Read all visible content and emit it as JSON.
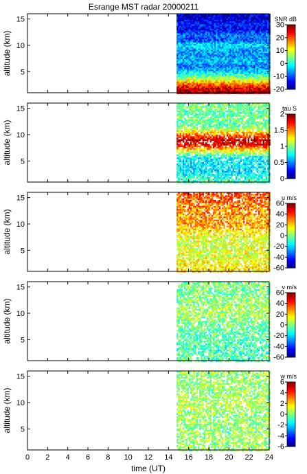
{
  "chart_data": {
    "type": "heatmap",
    "title": "Esrange MST radar 20000211",
    "xlabel": "time (UT)",
    "xlim": [
      0,
      24
    ],
    "x_ticks": [
      0,
      2,
      4,
      6,
      8,
      10,
      12,
      14,
      16,
      18,
      20,
      22,
      24
    ],
    "data_start_hour": 14.8,
    "panels": [
      {
        "name": "SNR",
        "ylabel": "altitude (km)",
        "ylim": [
          1,
          16
        ],
        "y_ticks": [
          5,
          10,
          15
        ],
        "colorbar_label": "SNR dB",
        "clim": [
          -20,
          30
        ],
        "colorbar_ticks": [
          -20,
          -10,
          0,
          10,
          20,
          30
        ],
        "fill": 1.0,
        "profile": [
          [
            1,
            28
          ],
          [
            2,
            24
          ],
          [
            3,
            14
          ],
          [
            4,
            4
          ],
          [
            5,
            -3
          ],
          [
            6,
            -8
          ],
          [
            7,
            -4
          ],
          [
            8,
            -7
          ],
          [
            9,
            -6
          ],
          [
            10,
            -2
          ],
          [
            11,
            -10
          ],
          [
            12,
            -8
          ],
          [
            13,
            -14
          ],
          [
            14,
            -12
          ],
          [
            15,
            -16
          ],
          [
            16,
            -16
          ]
        ]
      },
      {
        "name": "tau",
        "ylabel": "altitude (km)",
        "ylim": [
          1,
          16
        ],
        "y_ticks": [
          5,
          10,
          15
        ],
        "colorbar_label": "tau S",
        "clim": [
          0,
          2
        ],
        "colorbar_ticks": [
          0,
          0.5,
          1,
          1.5,
          2
        ],
        "fill": 0.8,
        "profile": [
          [
            1,
            0.9
          ],
          [
            2,
            0.8
          ],
          [
            3,
            0.7
          ],
          [
            4,
            0.75
          ],
          [
            5,
            0.7
          ],
          [
            6,
            0.85
          ],
          [
            7,
            1.3
          ],
          [
            8,
            1.75
          ],
          [
            9,
            1.85
          ],
          [
            10,
            1.5
          ],
          [
            11,
            1.1
          ],
          [
            12,
            0.9
          ],
          [
            13,
            1.0
          ],
          [
            14,
            0.9
          ],
          [
            15,
            1.0
          ],
          [
            16,
            1.0
          ]
        ]
      },
      {
        "name": "u",
        "ylabel": "altitude (km)",
        "ylim": [
          1,
          16
        ],
        "y_ticks": [
          5,
          10,
          15
        ],
        "colorbar_label": "u m/s",
        "clim": [
          -60,
          60
        ],
        "colorbar_ticks": [
          -60,
          -40,
          -20,
          0,
          20,
          40,
          60
        ],
        "fill": 0.75,
        "profile": [
          [
            1,
            18
          ],
          [
            2,
            16
          ],
          [
            3,
            14
          ],
          [
            4,
            12
          ],
          [
            5,
            10
          ],
          [
            6,
            10
          ],
          [
            7,
            10
          ],
          [
            8,
            14
          ],
          [
            9,
            22
          ],
          [
            10,
            28
          ],
          [
            11,
            26
          ],
          [
            12,
            28
          ],
          [
            13,
            30
          ],
          [
            14,
            32
          ],
          [
            15,
            34
          ],
          [
            16,
            36
          ]
        ]
      },
      {
        "name": "v",
        "ylabel": "altitude (km)",
        "ylim": [
          1,
          16
        ],
        "y_ticks": [
          5,
          10,
          15
        ],
        "colorbar_label": "v m/s",
        "clim": [
          -60,
          60
        ],
        "colorbar_ticks": [
          -60,
          -40,
          -20,
          0,
          20,
          40,
          60
        ],
        "fill": 0.7,
        "profile": [
          [
            1,
            -5
          ],
          [
            2,
            -6
          ],
          [
            3,
            -8
          ],
          [
            4,
            -6
          ],
          [
            5,
            -5
          ],
          [
            6,
            -4
          ],
          [
            7,
            -3
          ],
          [
            8,
            -2
          ],
          [
            9,
            2
          ],
          [
            10,
            5
          ],
          [
            11,
            4
          ],
          [
            12,
            2
          ],
          [
            13,
            0
          ],
          [
            14,
            -2
          ],
          [
            15,
            0
          ],
          [
            16,
            0
          ]
        ]
      },
      {
        "name": "w",
        "ylabel": "altitude (km)",
        "ylim": [
          1,
          16
        ],
        "y_ticks": [
          5,
          10,
          15
        ],
        "colorbar_label": "w m/s",
        "clim": [
          -6,
          6
        ],
        "colorbar_ticks": [
          -6,
          -4,
          -2,
          0,
          2,
          4,
          6
        ],
        "fill": 0.65,
        "profile": [
          [
            1,
            0.3
          ],
          [
            2,
            0.2
          ],
          [
            3,
            0.3
          ],
          [
            4,
            0.4
          ],
          [
            5,
            0.3
          ],
          [
            6,
            0.3
          ],
          [
            7,
            0.2
          ],
          [
            8,
            0.3
          ],
          [
            9,
            0.5
          ],
          [
            10,
            0.6
          ],
          [
            11,
            0.4
          ],
          [
            12,
            0.3
          ],
          [
            13,
            0.3
          ],
          [
            14,
            0.2
          ],
          [
            15,
            0.3
          ],
          [
            16,
            0.3
          ]
        ]
      }
    ]
  }
}
